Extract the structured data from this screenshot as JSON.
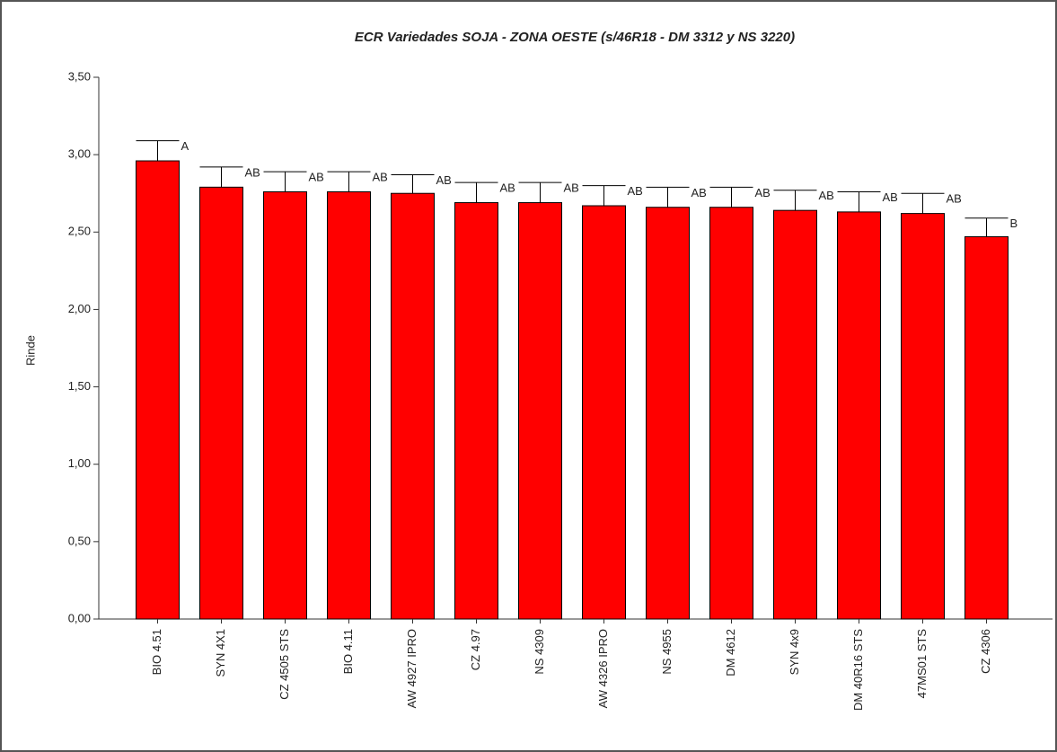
{
  "chart_data": {
    "type": "bar",
    "title": "ECR Variedades SOJA - ZONA OESTE (s/46R18 - DM 3312 y NS 3220)",
    "y_label": "Rinde",
    "categories": [
      "BIO 4.51",
      "SYN 4X1",
      "CZ 4505 STS",
      "BIO 4.11",
      "AW 4927 IPRO",
      "CZ 4.97",
      "NS 4309",
      "AW 4326 IPRO",
      "NS 4955",
      "DM 4612",
      "SYN 4x9",
      "DM 40R16 STS",
      "47MS01 STS",
      "CZ 4306"
    ],
    "values": [
      2.96,
      2.79,
      2.76,
      2.76,
      2.75,
      2.69,
      2.69,
      2.67,
      2.66,
      2.66,
      2.64,
      2.63,
      2.62,
      2.47
    ],
    "errors": [
      0.13,
      0.13,
      0.13,
      0.13,
      0.12,
      0.13,
      0.13,
      0.13,
      0.13,
      0.13,
      0.13,
      0.13,
      0.13,
      0.12
    ],
    "letters": [
      "A",
      "AB",
      "AB",
      "AB",
      "AB",
      "AB",
      "AB",
      "AB",
      "AB",
      "AB",
      "AB",
      "AB",
      "AB",
      "B"
    ],
    "color": "#ff0000",
    "ylim": [
      0,
      3.5
    ],
    "yticks": [
      {
        "value": 0,
        "label": "0,00"
      },
      {
        "value": 0.5,
        "label": "0,50"
      },
      {
        "value": 1,
        "label": "1,00"
      },
      {
        "value": 1.5,
        "label": "1,50"
      },
      {
        "value": 2,
        "label": "2,00"
      },
      {
        "value": 2.5,
        "label": "2,50"
      },
      {
        "value": 3,
        "label": "3,00"
      },
      {
        "value": 3.5,
        "label": "3,50"
      }
    ],
    "grid": false
  }
}
